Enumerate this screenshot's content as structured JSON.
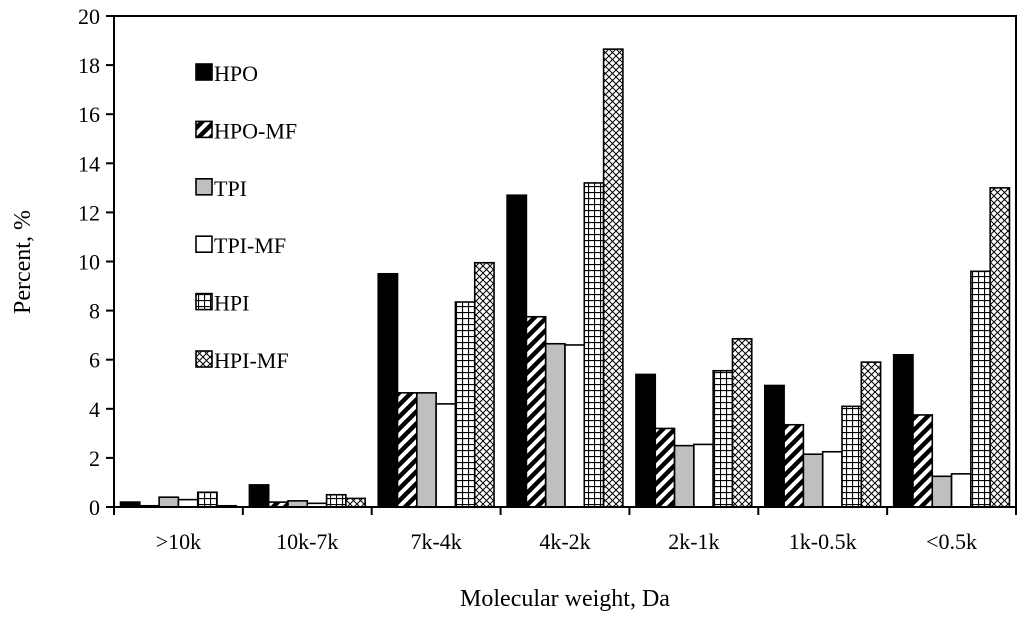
{
  "chart_data": {
    "type": "bar",
    "title": "",
    "xlabel": "Molecular weight, Da",
    "ylabel": "Percent, %",
    "ylim": [
      0,
      20
    ],
    "ytick_step": 2,
    "yticks": [
      "0",
      "2",
      "4",
      "6",
      "8",
      "10",
      "12",
      "14",
      "16",
      "18",
      "20"
    ],
    "grid": false,
    "legend_position": "top-left, inside plot",
    "categories": [
      ">10k",
      "10k-7k",
      "7k-4k",
      "4k-2k",
      "2k-1k",
      "1k-0.5k",
      "<0.5k"
    ],
    "series": [
      {
        "name": "HPO",
        "pattern": "solid-black",
        "values": [
          0.2,
          0.9,
          9.5,
          12.7,
          5.4,
          4.95,
          6.2
        ]
      },
      {
        "name": "HPO-MF",
        "pattern": "diagonal-stripes",
        "values": [
          0.05,
          0.2,
          4.65,
          7.75,
          3.2,
          3.35,
          3.75
        ]
      },
      {
        "name": "TPI",
        "pattern": "solid-gray",
        "values": [
          0.4,
          0.25,
          4.65,
          6.65,
          2.5,
          2.15,
          1.25
        ]
      },
      {
        "name": "TPI-MF",
        "pattern": "white",
        "values": [
          0.3,
          0.15,
          4.2,
          6.6,
          2.55,
          2.25,
          1.35
        ]
      },
      {
        "name": "HPI",
        "pattern": "grid-hatch",
        "values": [
          0.6,
          0.5,
          8.35,
          13.2,
          5.55,
          4.1,
          9.6
        ]
      },
      {
        "name": "HPI-MF",
        "pattern": "crosshatch",
        "values": [
          0.05,
          0.35,
          9.95,
          18.65,
          6.85,
          5.9,
          13.0
        ]
      }
    ]
  }
}
